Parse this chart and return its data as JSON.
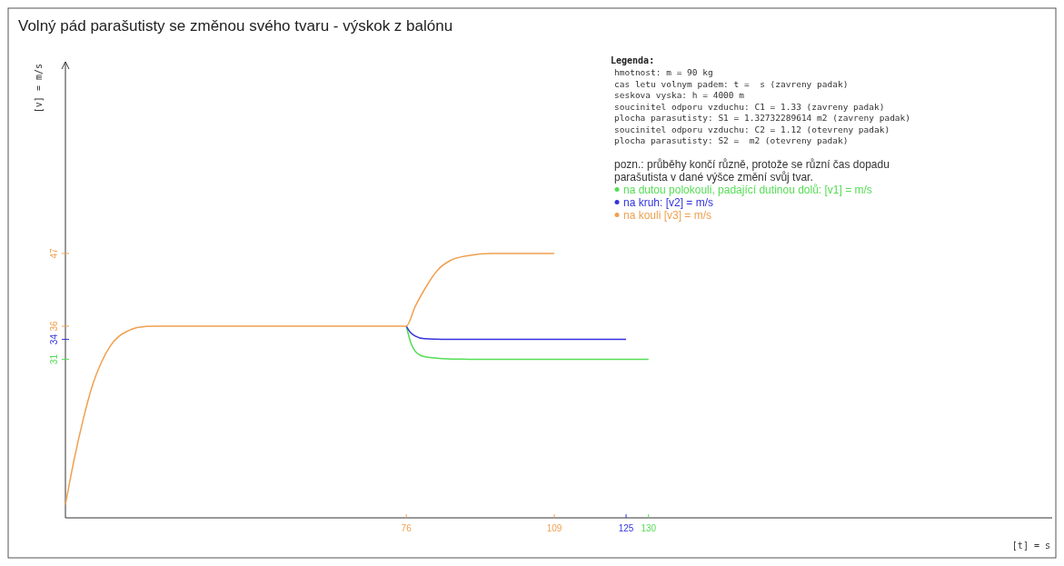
{
  "chart_data": {
    "type": "line",
    "title": "Volný pád parašutisty se změnou svého tvaru - výskok z balónu",
    "xlabel": "[t] = s",
    "ylabel": "[v] = m/s",
    "legend_title": "Legenda:",
    "legend": "top right",
    "line_style": "solid",
    "annotations": [
      "hmotnost: m = 90 kg",
      "cas letu volnym padem: t =  s (zavreny padak)",
      "seskova vyska: h = 4000 m",
      "soucinitel odporu vzduchu: C1 = 1.33 (zavreny padak)",
      "plocha parasutisty: S1 = 1.32732289614 m2 (zavreny padak)",
      "soucinitel odporu vzduchu: C2 = 1.12 (otevreny padak)",
      "plocha parasutisty: S2 =  m2 (otevreny padak)",
      "pozn.: průběhy končí různě, protože se různí čas dopadu",
      "parašutista v dané výšce změní svůj tvar."
    ],
    "xlim": [
      0,
      220
    ],
    "ylim": [
      7,
      76
    ],
    "xticks": [
      76,
      109,
      125,
      130
    ],
    "yticks": [
      47,
      36,
      34,
      31
    ],
    "series": [
      {
        "name": "na dutou polokouli, padající dutinou dolů: [v1] = m/s",
        "color": "#55dd55",
        "x": [
          76,
          77,
          78,
          80,
          84,
          90,
          130
        ],
        "values": [
          36,
          33.5,
          32.2,
          31.4,
          31.1,
          31,
          31
        ]
      },
      {
        "name": "na kruh: [v2] = m/s",
        "color": "#3333dd",
        "x": [
          76,
          77,
          78,
          80,
          84,
          125
        ],
        "values": [
          36,
          35,
          34.5,
          34.1,
          34,
          34
        ]
      },
      {
        "name": "na kouli [v3] = m/s",
        "color": "#f0a050",
        "x": [
          0,
          2,
          4,
          6,
          8,
          10,
          12,
          14,
          16,
          20,
          76,
          78,
          80,
          83,
          86,
          90,
          95,
          109
        ],
        "values": [
          9,
          16,
          22,
          27,
          30.5,
          33,
          34.5,
          35.3,
          35.8,
          36,
          36,
          39,
          41.5,
          44.5,
          46,
          46.7,
          47,
          47
        ]
      }
    ]
  }
}
